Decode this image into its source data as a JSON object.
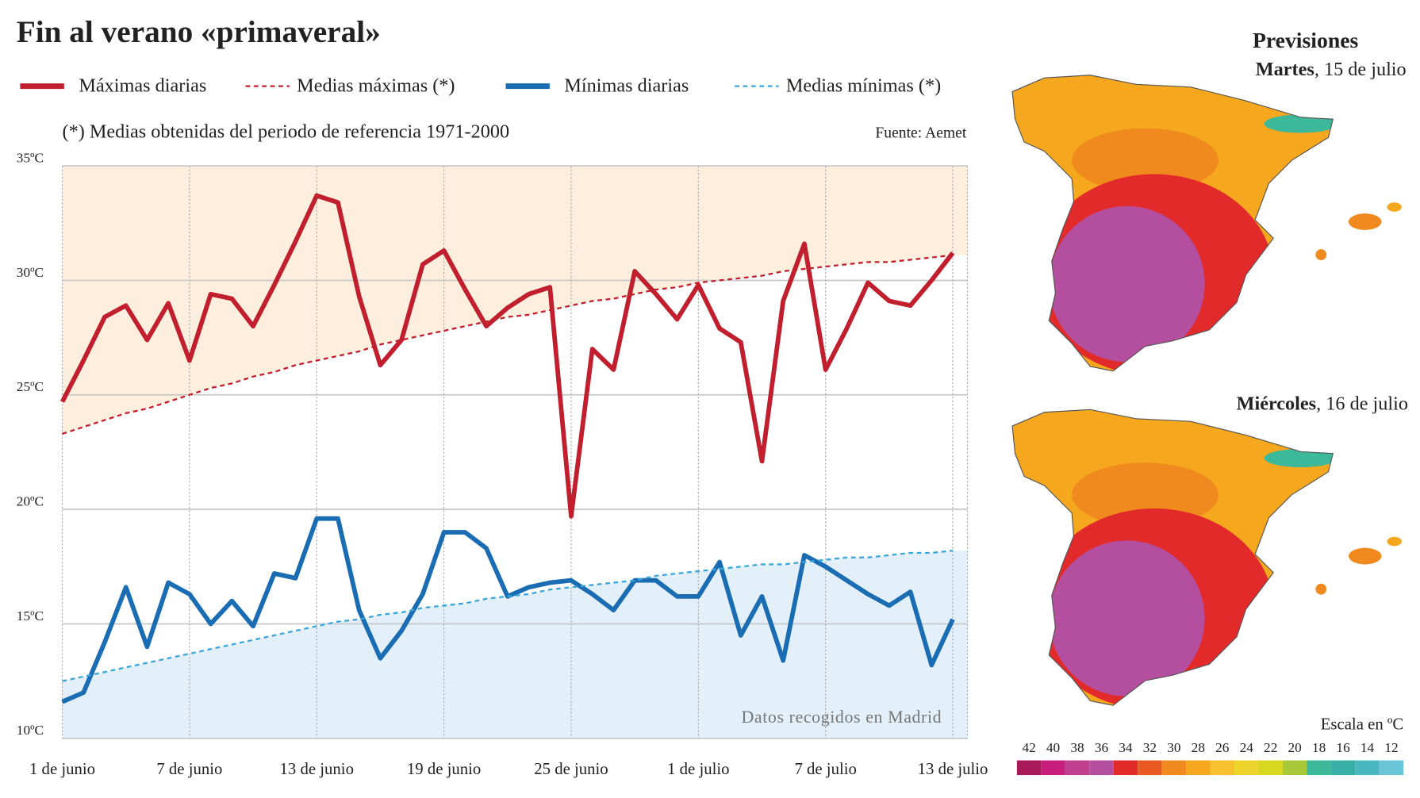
{
  "chart_data": {
    "type": "line",
    "title": "Fin al verano «primaveral»",
    "subtitle": "(*) Medias obtenidas del periodo de referencia 1971-2000",
    "source": "Fuente: Aemet",
    "annotation": "Datos recogidos en Madrid",
    "categories": [
      "1 de junio",
      null,
      null,
      null,
      null,
      null,
      "7 de junio",
      null,
      null,
      null,
      null,
      null,
      "13 de junio",
      null,
      null,
      null,
      null,
      null,
      "19 de junio",
      null,
      null,
      null,
      null,
      null,
      "25 de junio",
      null,
      null,
      null,
      null,
      null,
      "1 de julio",
      null,
      null,
      null,
      null,
      null,
      "7 de julio",
      null,
      null,
      null,
      null,
      null,
      "13 de julio"
    ],
    "series": [
      {
        "name": "Máximas diarias",
        "color": "#c11f2e",
        "style": "solid",
        "values": [
          24.7,
          26.5,
          28.4,
          28.9,
          27.4,
          29.0,
          26.5,
          29.4,
          29.2,
          28.0,
          29.8,
          31.7,
          33.7,
          33.4,
          29.3,
          26.3,
          27.4,
          30.7,
          31.3,
          29.6,
          28.0,
          28.8,
          29.4,
          29.7,
          19.7,
          27.0,
          26.1,
          30.4,
          29.4,
          28.3,
          29.8,
          27.9,
          27.3,
          22.1,
          29.1,
          31.6,
          26.1,
          27.9,
          29.9,
          29.1,
          28.9,
          30.0,
          31.2
        ]
      },
      {
        "name": "Medias máximas (*)",
        "color": "#c11f2e",
        "style": "dashed",
        "values": [
          23.3,
          23.6,
          23.9,
          24.2,
          24.4,
          24.7,
          25.0,
          25.3,
          25.5,
          25.8,
          26.0,
          26.3,
          26.5,
          26.7,
          26.9,
          27.2,
          27.4,
          27.6,
          27.8,
          28.0,
          28.2,
          28.4,
          28.5,
          28.7,
          28.9,
          29.1,
          29.2,
          29.4,
          29.6,
          29.7,
          29.9,
          30.0,
          30.1,
          30.2,
          30.4,
          30.5,
          30.6,
          30.7,
          30.8,
          30.8,
          30.9,
          31.0,
          31.1
        ]
      },
      {
        "name": "Mínimas diarias",
        "color": "#1a6db3",
        "style": "solid",
        "values": [
          11.6,
          12.0,
          14.2,
          16.6,
          14.0,
          16.8,
          16.3,
          15.0,
          16.0,
          14.9,
          17.2,
          17.0,
          19.6,
          19.6,
          15.6,
          13.5,
          14.7,
          16.3,
          19.0,
          19.0,
          18.3,
          16.2,
          16.6,
          16.8,
          16.9,
          16.3,
          15.6,
          16.9,
          16.9,
          16.2,
          16.2,
          17.7,
          14.5,
          16.2,
          13.4,
          18.0,
          17.5,
          16.9,
          16.3,
          15.8,
          16.4,
          13.2,
          15.2
        ]
      },
      {
        "name": "Medias mínimas (*)",
        "color": "#3aa6d9",
        "style": "dashed",
        "values": [
          12.5,
          12.7,
          12.9,
          13.1,
          13.3,
          13.5,
          13.7,
          13.9,
          14.1,
          14.3,
          14.5,
          14.7,
          14.9,
          15.1,
          15.2,
          15.4,
          15.5,
          15.7,
          15.8,
          15.9,
          16.1,
          16.2,
          16.3,
          16.5,
          16.6,
          16.7,
          16.8,
          16.9,
          17.1,
          17.2,
          17.3,
          17.4,
          17.5,
          17.6,
          17.6,
          17.7,
          17.8,
          17.9,
          17.9,
          18.0,
          18.1,
          18.1,
          18.2
        ]
      }
    ],
    "ylim": [
      10,
      35
    ],
    "yticks": [
      {
        "value": 10,
        "label": "10ºC"
      },
      {
        "value": 15,
        "label": "15ºC"
      },
      {
        "value": 20,
        "label": "20ºC"
      },
      {
        "value": 25,
        "label": "25ºC"
      },
      {
        "value": 30,
        "label": "30ºC"
      },
      {
        "value": 35,
        "label": "35ºC"
      }
    ],
    "grid": true
  },
  "forecast": {
    "title": "Previsiones",
    "maps": [
      {
        "day": "Martes",
        "date": ", 15 de julio"
      },
      {
        "day": "Miércoles",
        "date": ", 16 de julio"
      }
    ],
    "scale_title": "Escala en ºC",
    "scale_labels": [
      42,
      40,
      38,
      36,
      34,
      32,
      30,
      28,
      26,
      24,
      22,
      20,
      18,
      16,
      14,
      12
    ],
    "scale_colors": [
      "#a8195a",
      "#c81e7e",
      "#c0408f",
      "#b44fa0",
      "#e22a2a",
      "#e85a22",
      "#f08a1e",
      "#f5a81e",
      "#f6c12c",
      "#eed42a",
      "#d8d820",
      "#a8c83a",
      "#3cb89a",
      "#38b0a8",
      "#48b8c0",
      "#6ac4d8"
    ]
  }
}
